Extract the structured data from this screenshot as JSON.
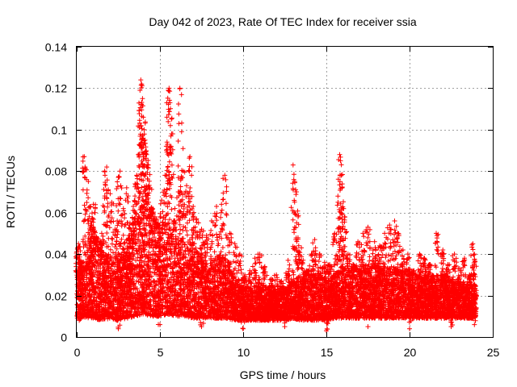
{
  "chart_data": {
    "type": "scatter",
    "title": "Day 042 of 2023, Rate Of TEC Index for receiver ssia",
    "xlabel": "GPS time / hours",
    "ylabel": "ROTI / TECUs",
    "xlim": [
      0,
      25
    ],
    "ylim": [
      0,
      0.14
    ],
    "x_ticks": [
      0,
      5,
      10,
      15,
      20,
      25
    ],
    "x_tick_labels": [
      "0",
      "5",
      "10",
      "15",
      "20",
      "25"
    ],
    "y_ticks": [
      0,
      0.02,
      0.04,
      0.06,
      0.08,
      0.1,
      0.12,
      0.14
    ],
    "y_tick_labels": [
      "0",
      "0.02",
      "0.04",
      "0.06",
      "0.08",
      "0.1",
      "0.12",
      "0.14"
    ],
    "grid": true,
    "marker": "+",
    "marker_color": "#ff0000",
    "series": [
      {
        "name": "ROTI",
        "points": [
          [
            0.05,
            0.043
          ],
          [
            0.1,
            0.045
          ],
          [
            0.2,
            0.036
          ],
          [
            0.3,
            0.03
          ],
          [
            0.45,
            0.087
          ],
          [
            0.5,
            0.082
          ],
          [
            0.7,
            0.075
          ],
          [
            0.8,
            0.063
          ],
          [
            0.9,
            0.054
          ],
          [
            1.0,
            0.064
          ],
          [
            1.1,
            0.06
          ],
          [
            1.2,
            0.048
          ],
          [
            1.4,
            0.046
          ],
          [
            1.5,
            0.05
          ],
          [
            1.7,
            0.078
          ],
          [
            1.8,
            0.082
          ],
          [
            1.9,
            0.071
          ],
          [
            2.1,
            0.065
          ],
          [
            2.3,
            0.052
          ],
          [
            2.5,
            0.077
          ],
          [
            2.6,
            0.08
          ],
          [
            2.8,
            0.062
          ],
          [
            3.0,
            0.072
          ],
          [
            3.2,
            0.055
          ],
          [
            3.4,
            0.063
          ],
          [
            3.5,
            0.068
          ],
          [
            3.6,
            0.078
          ],
          [
            3.7,
            0.088
          ],
          [
            3.8,
            0.119
          ],
          [
            3.85,
            0.124
          ],
          [
            3.9,
            0.122
          ],
          [
            3.95,
            0.115
          ],
          [
            4.0,
            0.106
          ],
          [
            4.05,
            0.1
          ],
          [
            4.1,
            0.095
          ],
          [
            4.2,
            0.088
          ],
          [
            4.3,
            0.083
          ],
          [
            4.4,
            0.072
          ],
          [
            4.5,
            0.062
          ],
          [
            4.7,
            0.058
          ],
          [
            4.9,
            0.055
          ],
          [
            5.1,
            0.066
          ],
          [
            5.3,
            0.078
          ],
          [
            5.45,
            0.093
          ],
          [
            5.5,
            0.119
          ],
          [
            5.55,
            0.12
          ],
          [
            5.6,
            0.113
          ],
          [
            5.7,
            0.098
          ],
          [
            5.9,
            0.062
          ],
          [
            6.1,
            0.07
          ],
          [
            6.2,
            0.12
          ],
          [
            6.3,
            0.099
          ],
          [
            6.4,
            0.08
          ],
          [
            6.6,
            0.073
          ],
          [
            6.8,
            0.087
          ],
          [
            6.9,
            0.078
          ],
          [
            7.0,
            0.063
          ],
          [
            7.2,
            0.057
          ],
          [
            7.5,
            0.052
          ],
          [
            7.8,
            0.049
          ],
          [
            8.1,
            0.056
          ],
          [
            8.4,
            0.063
          ],
          [
            8.7,
            0.064
          ],
          [
            8.9,
            0.078
          ],
          [
            9.2,
            0.05
          ],
          [
            9.5,
            0.045
          ],
          [
            9.8,
            0.04
          ],
          [
            10.1,
            0.03
          ],
          [
            10.4,
            0.032
          ],
          [
            10.7,
            0.038
          ],
          [
            11.0,
            0.04
          ],
          [
            11.3,
            0.034
          ],
          [
            11.7,
            0.028
          ],
          [
            12.0,
            0.03
          ],
          [
            12.3,
            0.027
          ],
          [
            12.7,
            0.037
          ],
          [
            13.0,
            0.083
          ],
          [
            13.1,
            0.075
          ],
          [
            13.2,
            0.07
          ],
          [
            13.3,
            0.058
          ],
          [
            13.5,
            0.043
          ],
          [
            13.8,
            0.032
          ],
          [
            14.1,
            0.04
          ],
          [
            14.3,
            0.047
          ],
          [
            14.6,
            0.04
          ],
          [
            14.9,
            0.036
          ],
          [
            15.2,
            0.035
          ],
          [
            15.5,
            0.05
          ],
          [
            15.7,
            0.065
          ],
          [
            15.8,
            0.088
          ],
          [
            15.85,
            0.085
          ],
          [
            15.9,
            0.078
          ],
          [
            16.0,
            0.062
          ],
          [
            16.1,
            0.058
          ],
          [
            16.3,
            0.04
          ],
          [
            16.6,
            0.035
          ],
          [
            16.9,
            0.046
          ],
          [
            17.2,
            0.05
          ],
          [
            17.5,
            0.053
          ],
          [
            17.9,
            0.046
          ],
          [
            18.2,
            0.044
          ],
          [
            18.5,
            0.05
          ],
          [
            18.8,
            0.054
          ],
          [
            19.1,
            0.056
          ],
          [
            19.3,
            0.05
          ],
          [
            19.6,
            0.042
          ],
          [
            19.9,
            0.04
          ],
          [
            20.2,
            0.032
          ],
          [
            20.6,
            0.04
          ],
          [
            20.9,
            0.038
          ],
          [
            21.2,
            0.035
          ],
          [
            21.6,
            0.05
          ],
          [
            22.0,
            0.042
          ],
          [
            22.3,
            0.035
          ],
          [
            22.7,
            0.04
          ],
          [
            23.0,
            0.033
          ],
          [
            23.3,
            0.038
          ],
          [
            23.6,
            0.03
          ],
          [
            23.8,
            0.045
          ],
          [
            23.9,
            0.04
          ],
          [
            0.15,
            0.008
          ],
          [
            2.5,
            0.004
          ],
          [
            5.0,
            0.006
          ],
          [
            7.5,
            0.005
          ],
          [
            10.0,
            0.004
          ],
          [
            12.5,
            0.005
          ],
          [
            15.0,
            0.003
          ],
          [
            17.5,
            0.005
          ],
          [
            20.0,
            0.004
          ],
          [
            22.5,
            0.005
          ],
          [
            23.9,
            0.006
          ]
        ],
        "envelope": {
          "x": [
            0,
            0.5,
            1,
            1.5,
            2,
            2.5,
            3,
            3.5,
            4,
            4.5,
            5,
            5.5,
            6,
            6.5,
            7,
            7.5,
            8,
            8.5,
            9,
            9.5,
            10,
            10.5,
            11,
            11.5,
            12,
            12.5,
            13,
            13.5,
            14,
            14.5,
            15,
            15.5,
            16,
            16.5,
            17,
            17.5,
            18,
            18.5,
            19,
            19.5,
            20,
            20.5,
            21,
            21.5,
            22,
            22.5,
            23,
            23.5,
            24
          ],
          "upper": [
            0.03,
            0.04,
            0.045,
            0.04,
            0.038,
            0.04,
            0.042,
            0.05,
            0.065,
            0.055,
            0.05,
            0.055,
            0.05,
            0.045,
            0.042,
            0.04,
            0.035,
            0.04,
            0.038,
            0.028,
            0.025,
            0.024,
            0.026,
            0.024,
            0.022,
            0.024,
            0.028,
            0.03,
            0.03,
            0.03,
            0.028,
            0.03,
            0.035,
            0.032,
            0.034,
            0.035,
            0.035,
            0.034,
            0.034,
            0.032,
            0.03,
            0.03,
            0.03,
            0.03,
            0.03,
            0.028,
            0.026,
            0.026,
            0.025
          ],
          "lower": [
            0.008,
            0.009,
            0.009,
            0.008,
            0.009,
            0.008,
            0.009,
            0.01,
            0.011,
            0.01,
            0.01,
            0.011,
            0.01,
            0.01,
            0.009,
            0.009,
            0.009,
            0.009,
            0.009,
            0.008,
            0.008,
            0.008,
            0.008,
            0.008,
            0.008,
            0.008,
            0.009,
            0.008,
            0.008,
            0.008,
            0.008,
            0.009,
            0.009,
            0.009,
            0.009,
            0.009,
            0.009,
            0.009,
            0.009,
            0.009,
            0.009,
            0.009,
            0.009,
            0.009,
            0.009,
            0.009,
            0.009,
            0.009,
            0.009
          ]
        }
      }
    ]
  }
}
